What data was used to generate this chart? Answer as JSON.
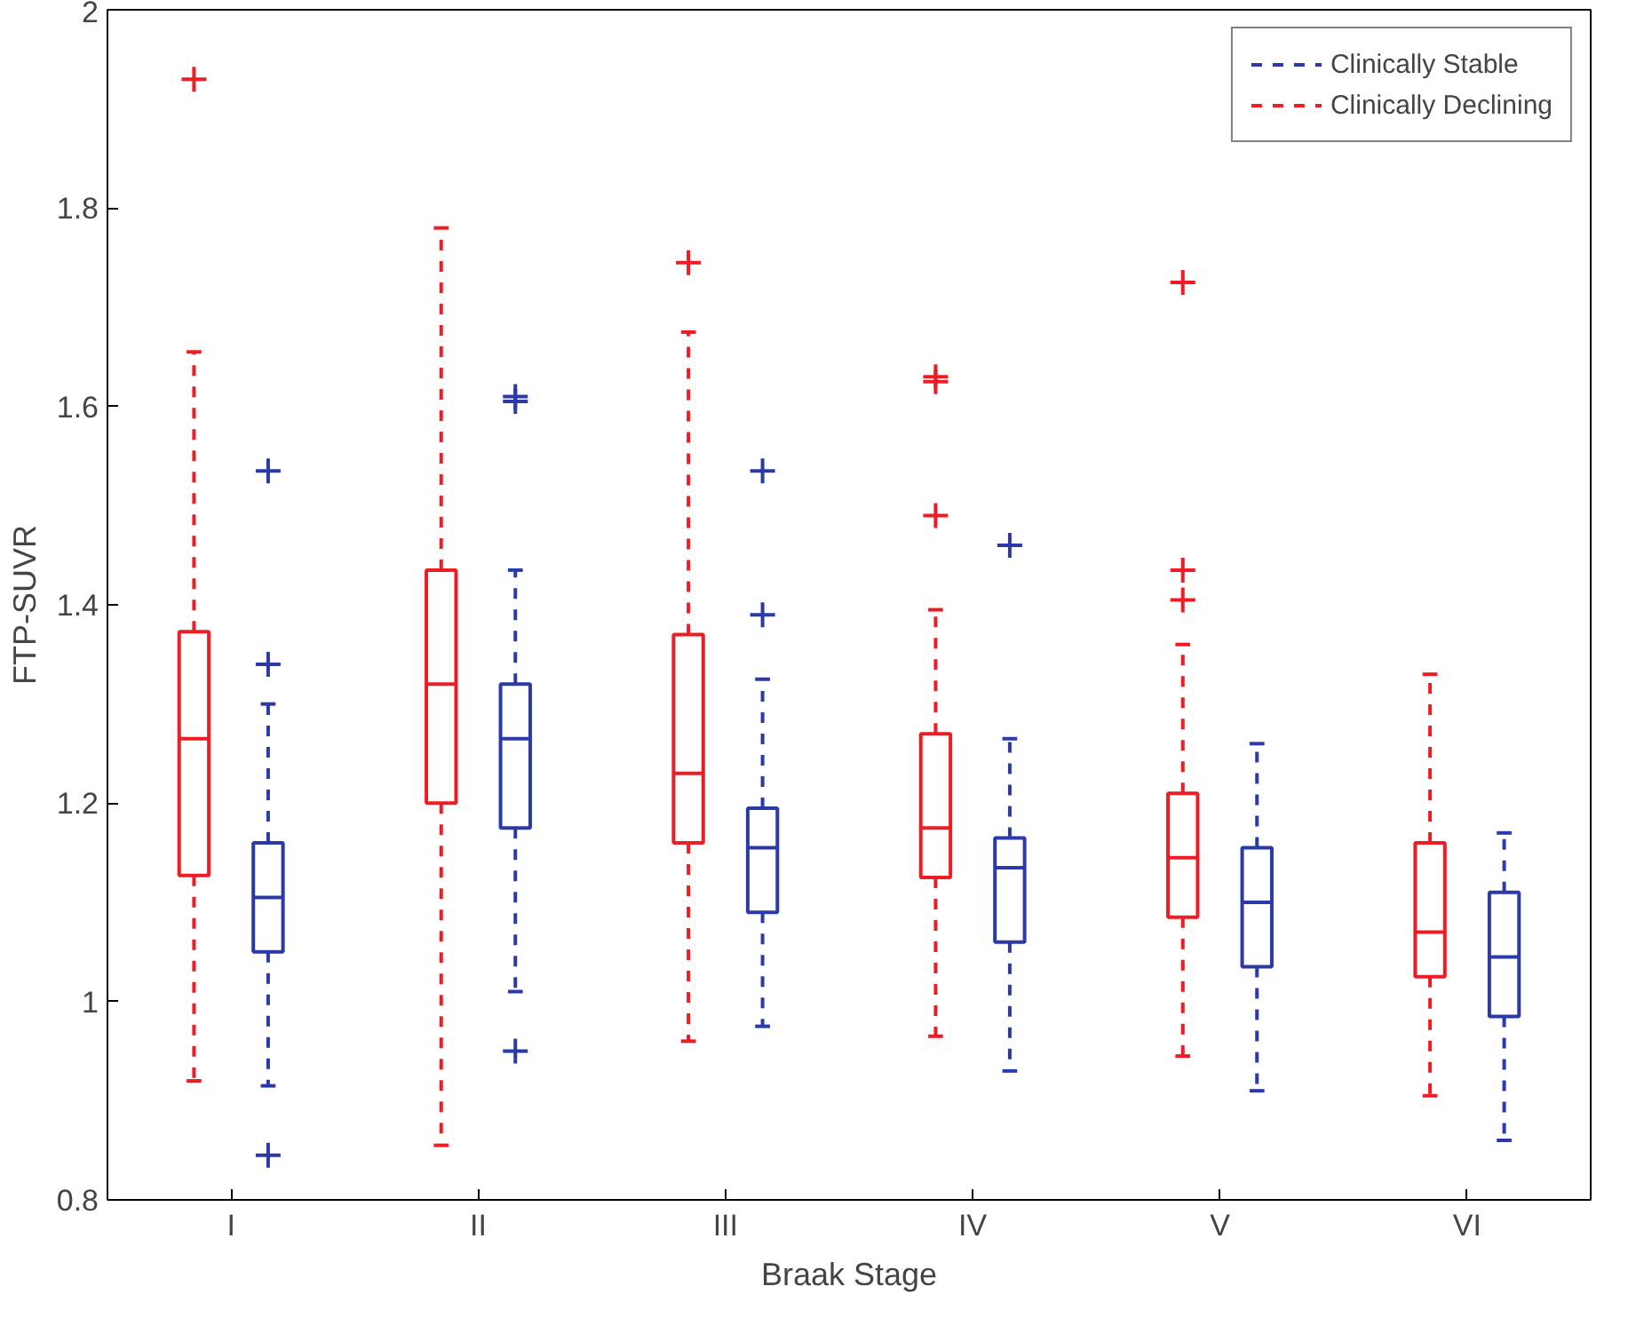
{
  "chart_data": {
    "type": "box",
    "xlabel": "Braak Stage",
    "ylabel": "FTP-SUVR",
    "categories": [
      "I",
      "II",
      "III",
      "IV",
      "V",
      "VI"
    ],
    "ylim": [
      0.8,
      2
    ],
    "yticks": [
      0.8,
      1,
      1.2,
      1.4,
      1.6,
      1.8,
      2
    ],
    "legend": "top right",
    "grid": false,
    "line_style": "dashed",
    "marker": "cross",
    "series": [
      {
        "name": "Clinically Stable",
        "color": "#2b3aa8",
        "boxes": [
          {
            "low": 0.915,
            "q1": 1.05,
            "median": 1.105,
            "q3": 1.16,
            "high": 1.3,
            "outliers": [
              1.535,
              1.34,
              0.845
            ]
          },
          {
            "low": 1.01,
            "q1": 1.175,
            "median": 1.265,
            "q3": 1.32,
            "high": 1.435,
            "outliers": [
              1.605,
              1.61,
              0.95
            ]
          },
          {
            "low": 0.975,
            "q1": 1.09,
            "median": 1.155,
            "q3": 1.195,
            "high": 1.325,
            "outliers": [
              1.535,
              1.39
            ]
          },
          {
            "low": 0.93,
            "q1": 1.06,
            "median": 1.135,
            "q3": 1.165,
            "high": 1.265,
            "outliers": [
              1.46
            ]
          },
          {
            "low": 0.91,
            "q1": 1.035,
            "median": 1.1,
            "q3": 1.155,
            "high": 1.26
          },
          {
            "low": 0.86,
            "q1": 0.985,
            "median": 1.045,
            "q3": 1.11,
            "high": 1.17
          }
        ]
      },
      {
        "name": "Clinically Declining",
        "color": "#ee1c25",
        "boxes": [
          {
            "low": 0.92,
            "q1": 1.127,
            "median": 1.265,
            "q3": 1.373,
            "high": 1.655,
            "outliers": [
              1.93
            ]
          },
          {
            "low": 0.855,
            "q1": 1.2,
            "median": 1.32,
            "q3": 1.435,
            "high": 1.78
          },
          {
            "low": 0.96,
            "q1": 1.16,
            "median": 1.23,
            "q3": 1.37,
            "high": 1.675,
            "outliers": [
              1.745
            ]
          },
          {
            "low": 0.965,
            "q1": 1.125,
            "median": 1.175,
            "q3": 1.27,
            "high": 1.395,
            "outliers": [
              1.63,
              1.625,
              1.49
            ]
          },
          {
            "low": 0.945,
            "q1": 1.085,
            "median": 1.145,
            "q3": 1.21,
            "high": 1.36,
            "outliers": [
              1.725,
              1.435,
              1.405
            ]
          },
          {
            "low": 0.905,
            "q1": 1.025,
            "median": 1.07,
            "q3": 1.16,
            "high": 1.33
          }
        ]
      }
    ]
  }
}
